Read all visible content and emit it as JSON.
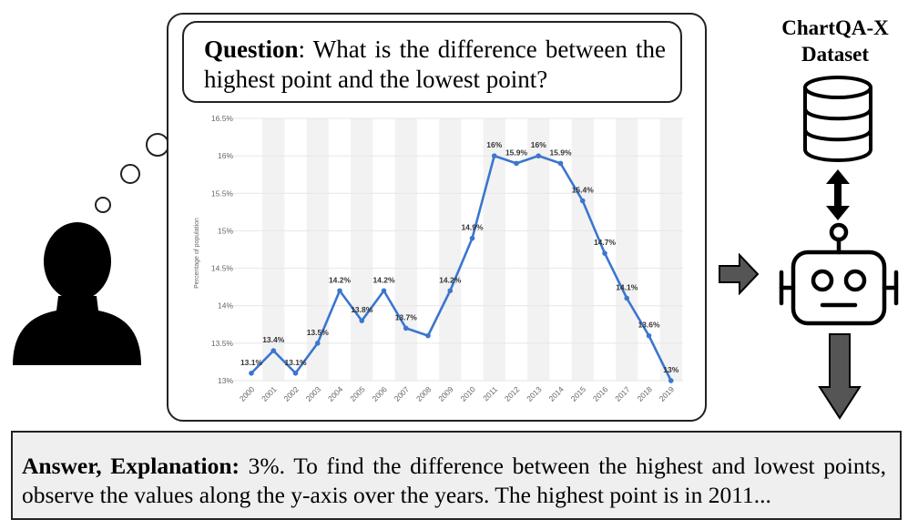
{
  "question": {
    "label": "Question",
    "text": ": What is the difference between the highest point and the lowest point?"
  },
  "dataset": {
    "title_line1": "ChartQA-X",
    "title_line2": "Dataset"
  },
  "answer": {
    "label": "Answer, Explanation:",
    "text": " 3%. To find the difference between the highest and lowest points, observe the values along the y-axis over the years. The highest point is in 2011..."
  },
  "icons": [
    "person-icon",
    "thought-bubble-icon",
    "database-icon",
    "double-arrow-icon",
    "robot-icon",
    "arrow-right-icon",
    "arrow-down-icon"
  ],
  "colors": {
    "line": "#3b76cf",
    "stripe": "#f2f2f2",
    "answer_bg": "#efefef",
    "arrow": "#555555"
  },
  "chart_data": {
    "type": "line",
    "title": "",
    "xlabel": "",
    "ylabel": "Percentage of population",
    "ylim": [
      13,
      16.5
    ],
    "y_ticks": [
      "13%",
      "13.5%",
      "14%",
      "14.5%",
      "15%",
      "15.5%",
      "16%",
      "16.5%"
    ],
    "x": [
      "2000",
      "2001",
      "2002",
      "2003",
      "2004",
      "2005",
      "2006",
      "2007",
      "2008",
      "2009",
      "2010",
      "2011",
      "2012",
      "2013",
      "2014",
      "2015",
      "2016",
      "2017",
      "2018",
      "2019"
    ],
    "values": [
      13.1,
      13.4,
      13.1,
      13.5,
      14.2,
      13.8,
      14.2,
      13.7,
      13.6,
      14.2,
      14.9,
      16.0,
      15.9,
      16.0,
      15.9,
      15.4,
      14.7,
      14.1,
      13.6,
      13.0
    ],
    "data_labels": [
      "13.1%",
      "13.4%",
      "13.1%",
      "13.5%",
      "14.2%",
      "13.8%",
      "14.2%",
      "13.7%",
      "",
      "14.2%",
      "14.9%",
      "16%",
      "15.9%",
      "16%",
      "15.9%",
      "15.4%",
      "14.7%",
      "14.1%",
      "13.6%",
      "13%"
    ],
    "grid": true,
    "legend": "none"
  }
}
